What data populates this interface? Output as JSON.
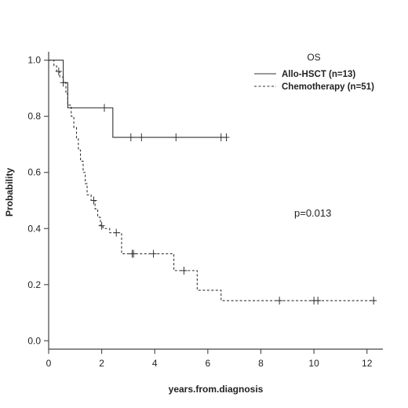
{
  "chart_data": {
    "type": "line",
    "subtype": "kaplan-meier-step",
    "title": "",
    "xlabel": "years.from.diagnosis",
    "ylabel": "Probability",
    "xlim": [
      0,
      12.6
    ],
    "ylim": [
      -0.03,
      1.03
    ],
    "xticks": [
      0,
      2,
      4,
      6,
      8,
      10,
      12
    ],
    "xtick_labels": [
      "0",
      "2",
      "4",
      "6",
      "8",
      "10",
      "12"
    ],
    "yticks": [
      0.0,
      0.2,
      0.4,
      0.6,
      0.8,
      1.0
    ],
    "ytick_labels": [
      "0.0",
      "0.2",
      "0.4",
      "0.6",
      "0.8",
      "1.0"
    ],
    "grid": false,
    "legend": {
      "title": "OS",
      "placement": "top-right",
      "entries": [
        "Allo-HSCT (n=13)",
        "Chemotherapy (n=51)"
      ]
    },
    "annotation": "p=0.013",
    "series": [
      {
        "name": "Allo-HSCT (n=13)",
        "line_style": "solid",
        "color": "#333333",
        "steps": [
          [
            0,
            1.0
          ],
          [
            0.55,
            0.92
          ],
          [
            0.72,
            0.83
          ],
          [
            2.42,
            0.725
          ],
          [
            6.7,
            0.725
          ]
        ],
        "censor_times": [
          0.55,
          2.1,
          3.1,
          3.5,
          4.8,
          6.5,
          6.7
        ]
      },
      {
        "name": "Chemotherapy (n=51)",
        "line_style": "dashed",
        "color": "#333333",
        "steps": [
          [
            0,
            1.0
          ],
          [
            0.2,
            0.98
          ],
          [
            0.3,
            0.96
          ],
          [
            0.42,
            0.94
          ],
          [
            0.55,
            0.92
          ],
          [
            0.65,
            0.88
          ],
          [
            0.72,
            0.84
          ],
          [
            0.85,
            0.8
          ],
          [
            0.95,
            0.76
          ],
          [
            1.05,
            0.72
          ],
          [
            1.12,
            0.68
          ],
          [
            1.2,
            0.64
          ],
          [
            1.3,
            0.6
          ],
          [
            1.38,
            0.56
          ],
          [
            1.45,
            0.52
          ],
          [
            1.6,
            0.5
          ],
          [
            1.75,
            0.47
          ],
          [
            1.85,
            0.44
          ],
          [
            1.95,
            0.41
          ],
          [
            2.05,
            0.4
          ],
          [
            2.3,
            0.385
          ],
          [
            2.75,
            0.31
          ],
          [
            4.72,
            0.25
          ],
          [
            5.6,
            0.18
          ],
          [
            6.5,
            0.143
          ],
          [
            12.3,
            0.143
          ]
        ],
        "censor_times": [
          0.38,
          1.7,
          2.0,
          2.55,
          3.15,
          3.2,
          3.95,
          5.1,
          8.7,
          10.0,
          10.15,
          12.25
        ]
      }
    ]
  }
}
